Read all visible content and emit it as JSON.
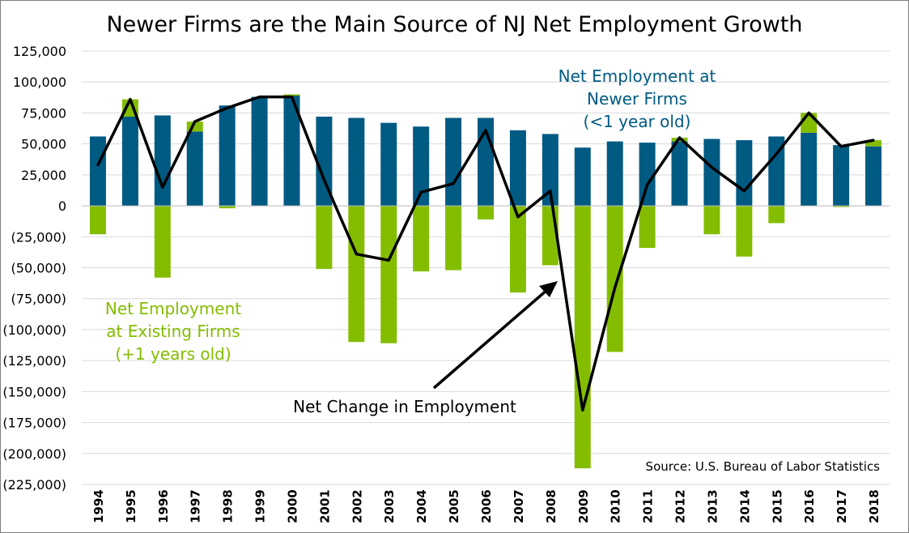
{
  "chart_data": {
    "type": "bar",
    "title": "Newer Firms are the Main Source of NJ Net Employment Growth",
    "categories": [
      "1994",
      "1995",
      "1996",
      "1997",
      "1998",
      "1999",
      "2000",
      "2001",
      "2002",
      "2003",
      "2004",
      "2005",
      "2006",
      "2007",
      "2008",
      "2009",
      "2010",
      "2011",
      "2012",
      "2013",
      "2014",
      "2015",
      "2016",
      "2017",
      "2018"
    ],
    "series": [
      {
        "name": "Net Employment at Newer Firms (<1 year old)",
        "type": "bar",
        "color": "#005a82",
        "values": [
          56000,
          72000,
          73000,
          60000,
          81000,
          88000,
          89000,
          72000,
          71000,
          67000,
          64000,
          71000,
          71000,
          61000,
          58000,
          47000,
          52000,
          51000,
          52000,
          54000,
          53000,
          56000,
          59000,
          49000,
          48000
        ]
      },
      {
        "name": "Net Employment at Existing Firms (+1 years old)",
        "type": "bar",
        "color": "#84bd00",
        "values": [
          -23000,
          14000,
          -58000,
          8000,
          -2000,
          0,
          1000,
          -51000,
          -110000,
          -111000,
          -53000,
          -52000,
          -11000,
          -70000,
          -48000,
          -212000,
          -118000,
          -34000,
          3000,
          -23000,
          -41000,
          -14000,
          16000,
          -1000,
          5000
        ]
      },
      {
        "name": "Net Change in Employment",
        "type": "line",
        "color": "#000000",
        "values": [
          33000,
          86000,
          15000,
          68000,
          79000,
          88000,
          88000,
          21000,
          -39000,
          -44000,
          11000,
          18000,
          61000,
          -9000,
          12000,
          -165000,
          -66000,
          17000,
          55000,
          31000,
          12000,
          42000,
          75000,
          48000,
          53000
        ]
      }
    ],
    "ylim": [
      -225000,
      125000
    ],
    "yticks": [
      125000,
      100000,
      75000,
      50000,
      25000,
      0,
      -25000,
      -50000,
      -75000,
      -100000,
      -125000,
      -150000,
      -175000,
      -200000,
      -225000
    ],
    "ytick_labels": [
      "125,000",
      "100,000",
      "75,000",
      "50,000",
      "25,000",
      "0",
      "(25,000)",
      "(50,000)",
      "(75,000)",
      "(100,000)",
      "(125,000)",
      "(150,000)",
      "(175,000)",
      "(200,000)",
      "(225,000)"
    ],
    "grid": true,
    "annotations": {
      "newer": [
        "Net Employment at",
        "Newer Firms",
        "(<1 year old)"
      ],
      "existing": [
        "Net Employment",
        "at Existing Firms",
        "(+1 years old)"
      ],
      "net_change": "Net Change in Employment",
      "source": "Source: U.S. Bureau of Labor Statistics"
    }
  }
}
